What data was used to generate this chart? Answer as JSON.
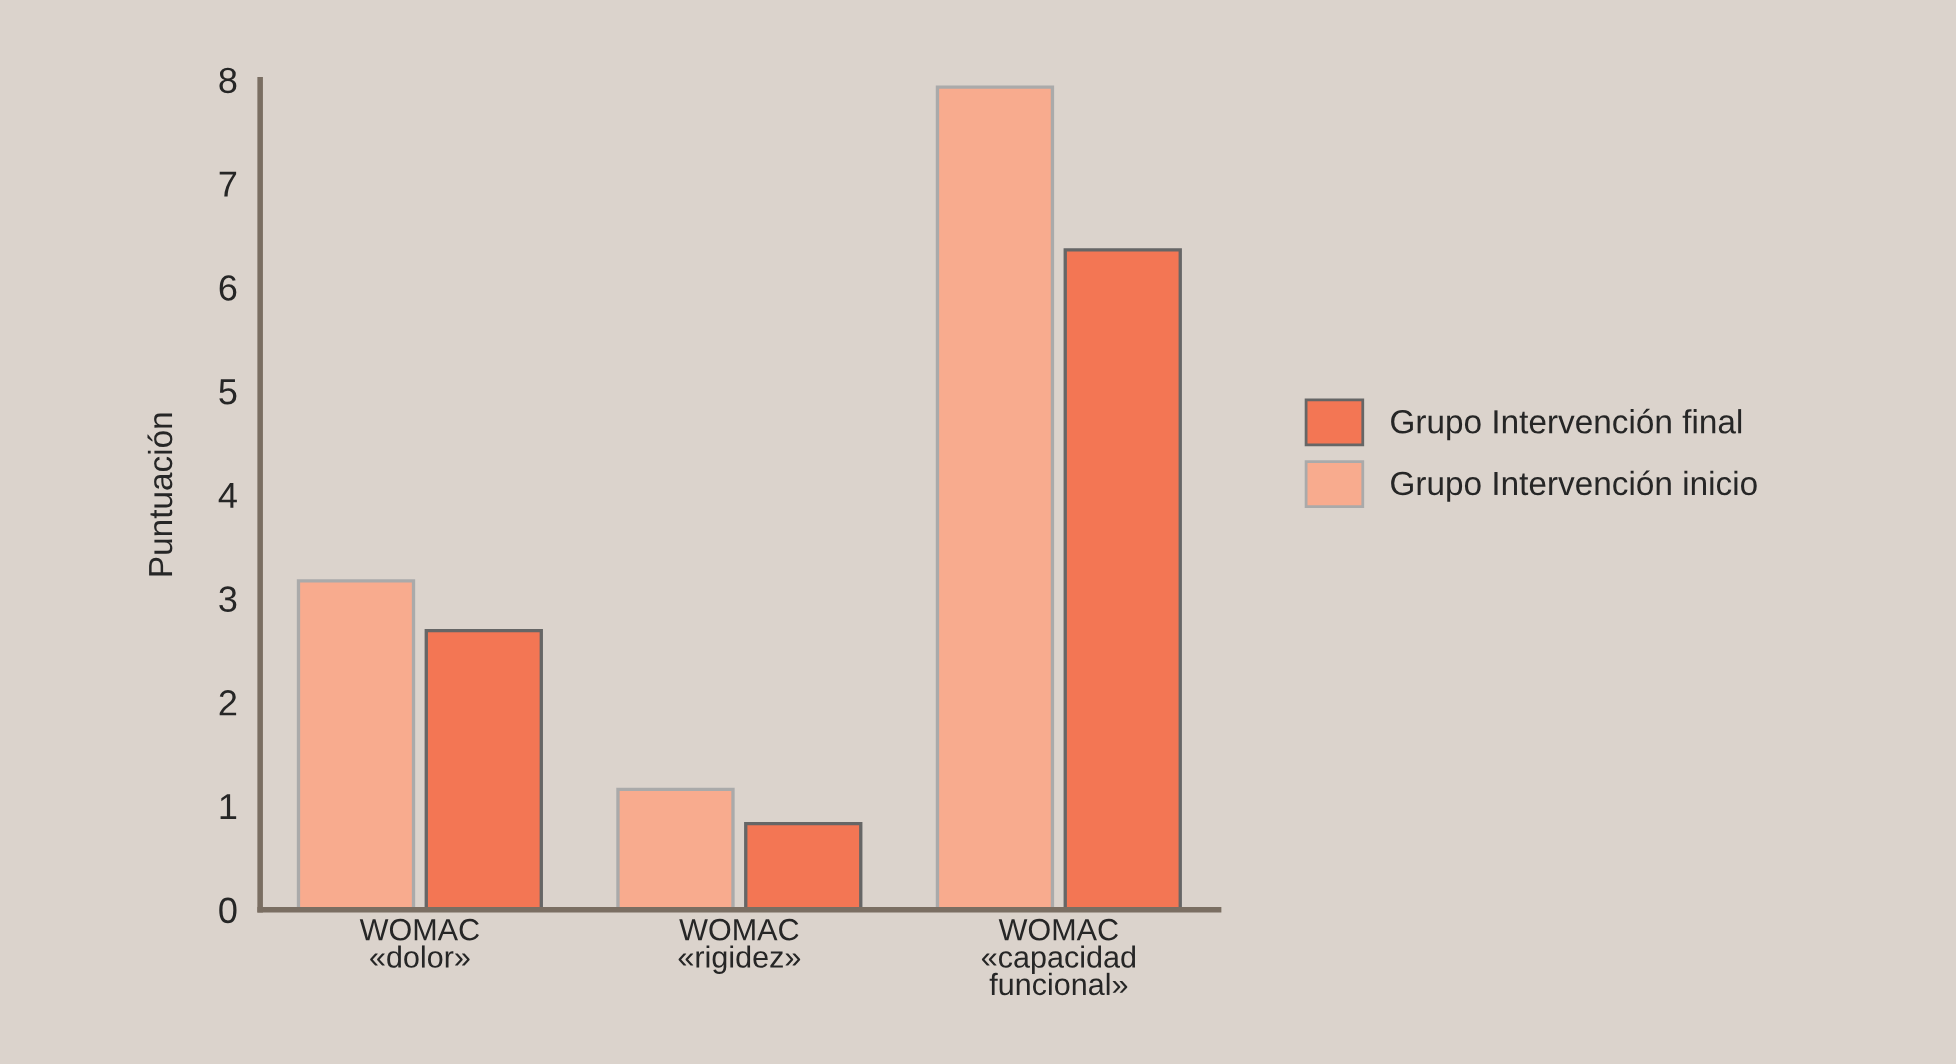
{
  "chart_data": {
    "type": "bar",
    "ylabel": "Puntuación",
    "categories": [
      "WOMAC\n«dolor»",
      "WOMAC\n«rigidez»",
      "WOMAC\n«capacidad\nfuncional»"
    ],
    "series": [
      {
        "name": "Grupo Intervención inicio",
        "color": "#f8ab8e",
        "values": [
          3.17,
          1.16,
          7.93
        ]
      },
      {
        "name": "Grupo Intervención final",
        "color": "#f37654",
        "values": [
          2.69,
          0.83,
          6.36
        ]
      }
    ],
    "ylim": [
      0,
      8
    ],
    "yticks": [
      0,
      1,
      2,
      3,
      4,
      5,
      6,
      7,
      8
    ],
    "grid": false,
    "legend": "right"
  }
}
